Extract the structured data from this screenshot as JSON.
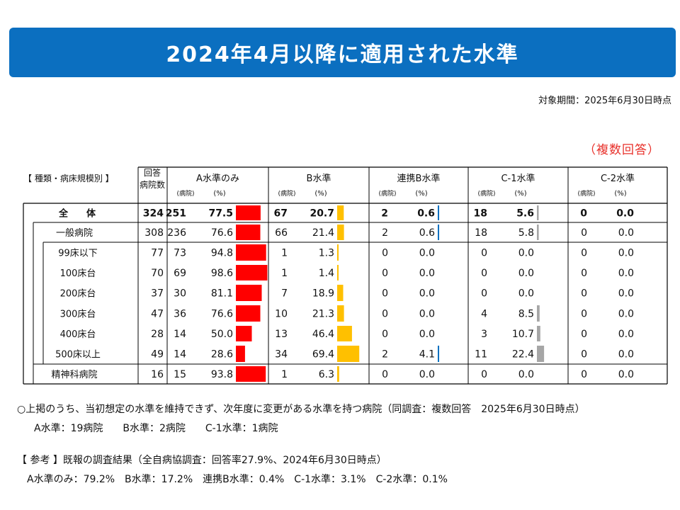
{
  "title": "2024年4月以降に適用された水準",
  "period": "対象期間：2025年6月30日時点",
  "multi_answer": "（複数回答）",
  "header": {
    "category_label": "【 種類・病床規模別 】",
    "count_label_1": "回答",
    "count_label_2": "病院数",
    "sub_hosp": "(病院)",
    "sub_pct": "(%)"
  },
  "colors": {
    "A": "#ff0000",
    "B": "#ffc000",
    "Renkei": "#0070c0",
    "C1": "#a6a6a6",
    "C2": "#a6a6a6",
    "banner": "#0b6fc0",
    "accent_red": "#e8302a"
  },
  "chart_data": {
    "type": "table",
    "columns": [
      {
        "key": "A",
        "label": "A水準のみ"
      },
      {
        "key": "B",
        "label": "B水準"
      },
      {
        "key": "Renkei",
        "label": "連携B水準"
      },
      {
        "key": "C1",
        "label": "C-1水準"
      },
      {
        "key": "C2",
        "label": "C-2水準"
      }
    ],
    "rows": [
      {
        "label": "全　　体",
        "indent": 0,
        "bold": true,
        "total": "324",
        "A": [
          "251",
          "77.5"
        ],
        "B": [
          "67",
          "20.7"
        ],
        "Renkei": [
          "2",
          "0.6"
        ],
        "C1": [
          "18",
          "5.6"
        ],
        "C2": [
          "0",
          "0.0"
        ]
      },
      {
        "label": "一般病院",
        "indent": 1,
        "bold": false,
        "total": "308",
        "A": [
          "236",
          "76.6"
        ],
        "B": [
          "66",
          "21.4"
        ],
        "Renkei": [
          "2",
          "0.6"
        ],
        "C1": [
          "18",
          "5.8"
        ],
        "C2": [
          "0",
          "0.0"
        ]
      },
      {
        "label": "99床以下",
        "indent": 2,
        "bold": false,
        "total": "77",
        "A": [
          "73",
          "94.8"
        ],
        "B": [
          "1",
          "1.3"
        ],
        "Renkei": [
          "0",
          "0.0"
        ],
        "C1": [
          "0",
          "0.0"
        ],
        "C2": [
          "0",
          "0.0"
        ]
      },
      {
        "label": "100床台",
        "indent": 2,
        "bold": false,
        "total": "70",
        "A": [
          "69",
          "98.6"
        ],
        "B": [
          "1",
          "1.4"
        ],
        "Renkei": [
          "0",
          "0.0"
        ],
        "C1": [
          "0",
          "0.0"
        ],
        "C2": [
          "0",
          "0.0"
        ]
      },
      {
        "label": "200床台",
        "indent": 2,
        "bold": false,
        "total": "37",
        "A": [
          "30",
          "81.1"
        ],
        "B": [
          "7",
          "18.9"
        ],
        "Renkei": [
          "0",
          "0.0"
        ],
        "C1": [
          "0",
          "0.0"
        ],
        "C2": [
          "0",
          "0.0"
        ]
      },
      {
        "label": "300床台",
        "indent": 2,
        "bold": false,
        "total": "47",
        "A": [
          "36",
          "76.6"
        ],
        "B": [
          "10",
          "21.3"
        ],
        "Renkei": [
          "0",
          "0.0"
        ],
        "C1": [
          "4",
          "8.5"
        ],
        "C2": [
          "0",
          "0.0"
        ]
      },
      {
        "label": "400床台",
        "indent": 2,
        "bold": false,
        "total": "28",
        "A": [
          "14",
          "50.0"
        ],
        "B": [
          "13",
          "46.4"
        ],
        "Renkei": [
          "0",
          "0.0"
        ],
        "C1": [
          "3",
          "10.7"
        ],
        "C2": [
          "0",
          "0.0"
        ]
      },
      {
        "label": "500床以上",
        "indent": 2,
        "bold": false,
        "total": "49",
        "A": [
          "14",
          "28.6"
        ],
        "B": [
          "34",
          "69.4"
        ],
        "Renkei": [
          "2",
          "4.1"
        ],
        "C1": [
          "11",
          "22.4"
        ],
        "C2": [
          "0",
          "0.0"
        ]
      },
      {
        "label": "精神科病院",
        "indent": 1,
        "bold": false,
        "total": "16",
        "A": [
          "15",
          "93.8"
        ],
        "B": [
          "1",
          "6.3"
        ],
        "Renkei": [
          "0",
          "0.0"
        ],
        "C1": [
          "0",
          "0.0"
        ],
        "C2": [
          "0",
          "0.0"
        ]
      }
    ]
  },
  "notes": {
    "line1": "○上掲のうち、当初想定の水準を維持できず、次年度に変更がある水準を持つ病院（同調査：複数回答　2025年6月30日時点）",
    "line2": "A水準：19病院　　B水準：2病院　　C-1水準：1病院",
    "line3": "【 参考 】既報の調査結果（全自病協調査：回答率27.9%、2024年6月30日時点）",
    "line4": "A水準のみ：79.2%　B水準：17.2%　連携B水準：0.4%　C-1水準：3.1%　C-2水準：0.1%"
  }
}
